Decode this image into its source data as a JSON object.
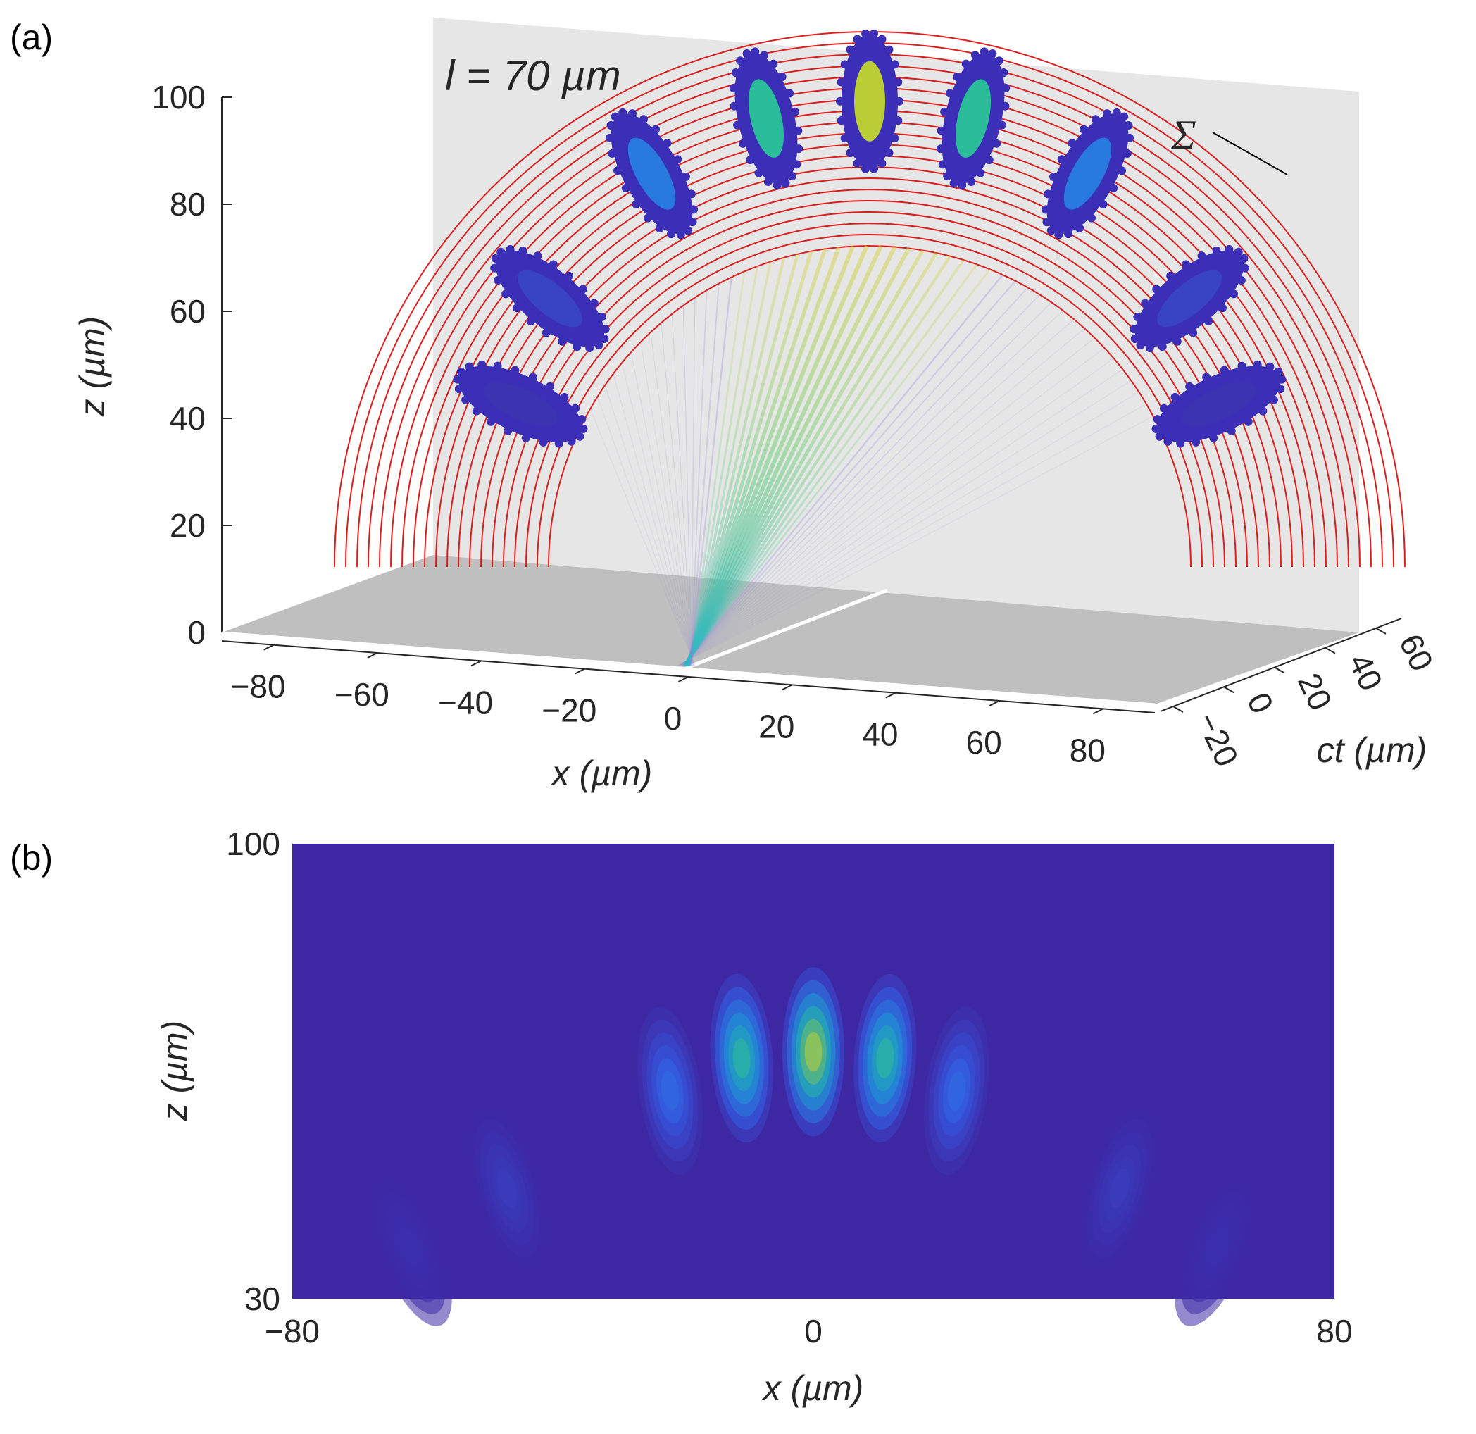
{
  "panels": {
    "a_label": "(a)",
    "b_label": "(b)"
  },
  "chart_data": [
    {
      "id": "a",
      "type": "scatter",
      "annotation": "l = 70 µm",
      "plane_label": "Σ",
      "xlabel": "x (µm)",
      "ylabel": "ct (µm)",
      "zlabel": "z (µm)",
      "x_ticks": [
        "−80",
        "−60",
        "−40",
        "−20",
        "0",
        "20",
        "40",
        "60",
        "80"
      ],
      "y_ticks": [
        "−20",
        "0",
        "20",
        "40",
        "60"
      ],
      "z_ticks": [
        "0",
        "20",
        "40",
        "60",
        "80",
        "100"
      ],
      "xlim": [
        -90,
        90
      ],
      "ylim": [
        -25,
        70
      ],
      "zlim": [
        0,
        100
      ],
      "grid": false,
      "arcs": {
        "inner_radius": 60,
        "outer_radius": 100,
        "count": 20,
        "color": "#dd1e1e"
      },
      "lobes": [
        {
          "angle_deg": 155,
          "radius": 72,
          "intensity": 0.05
        },
        {
          "angle_deg": 140,
          "radius": 78,
          "intensity": 0.12
        },
        {
          "angle_deg": 119,
          "radius": 84,
          "intensity": 0.35
        },
        {
          "angle_deg": 103,
          "radius": 86,
          "intensity": 0.72
        },
        {
          "angle_deg": 90,
          "radius": 87,
          "intensity": 1.0
        },
        {
          "angle_deg": 77,
          "radius": 86,
          "intensity": 0.72
        },
        {
          "angle_deg": 61,
          "radius": 84,
          "intensity": 0.35
        },
        {
          "angle_deg": 40,
          "radius": 78,
          "intensity": 0.12
        },
        {
          "angle_deg": 25,
          "radius": 72,
          "intensity": 0.05
        }
      ],
      "colors": {
        "background_plane": "#e6e6e6",
        "floor": "#bfbfbf",
        "marker": "#3b2fb8"
      }
    },
    {
      "id": "b",
      "type": "heatmap",
      "xlabel": "x (µm)",
      "ylabel": "z (µm)",
      "x_ticks": [
        "−80",
        "0",
        "80"
      ],
      "y_ticks": [
        "30",
        "100"
      ],
      "xlim": [
        -80,
        80
      ],
      "ylim": [
        30,
        100
      ],
      "lobes": [
        {
          "x": 0,
          "z": 68,
          "amp": 1.0
        },
        {
          "x": -11,
          "z": 67,
          "amp": 0.72
        },
        {
          "x": 11,
          "z": 67,
          "amp": 0.72
        },
        {
          "x": -22,
          "z": 62,
          "amp": 0.3
        },
        {
          "x": 22,
          "z": 62,
          "amp": 0.3
        },
        {
          "x": -47,
          "z": 47,
          "amp": 0.1
        },
        {
          "x": 47,
          "z": 47,
          "amp": 0.1
        },
        {
          "x": -62,
          "z": 38,
          "amp": 0.04
        },
        {
          "x": 62,
          "z": 38,
          "amp": 0.04
        }
      ],
      "colormap": "parula",
      "background_color": "#3e27a3"
    }
  ]
}
